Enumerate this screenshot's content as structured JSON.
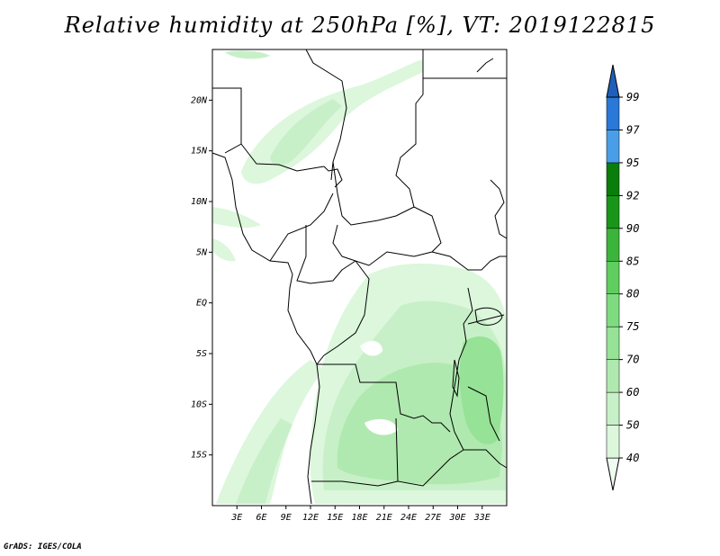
{
  "title": "Relative humidity at 250hPa [%], VT: 2019122815",
  "credit": "GrADS: IGES/COLA",
  "map": {
    "lon_range": [
      0,
      36
    ],
    "lat_range": [
      -20,
      25
    ],
    "lat_ticks": [
      {
        "value": 20,
        "label": "20N"
      },
      {
        "value": 15,
        "label": "15N"
      },
      {
        "value": 10,
        "label": "10N"
      },
      {
        "value": 5,
        "label": "5N"
      },
      {
        "value": 0,
        "label": "EQ"
      },
      {
        "value": -5,
        "label": "5S"
      },
      {
        "value": -10,
        "label": "10S"
      },
      {
        "value": -15,
        "label": "15S"
      }
    ],
    "lon_ticks": [
      {
        "value": 3,
        "label": "3E"
      },
      {
        "value": 6,
        "label": "6E"
      },
      {
        "value": 9,
        "label": "9E"
      },
      {
        "value": 12,
        "label": "12E"
      },
      {
        "value": 15,
        "label": "15E"
      },
      {
        "value": 18,
        "label": "18E"
      },
      {
        "value": 21,
        "label": "21E"
      },
      {
        "value": 24,
        "label": "24E"
      },
      {
        "value": 27,
        "label": "27E"
      },
      {
        "value": 30,
        "label": "30E"
      },
      {
        "value": 33,
        "label": "33E"
      }
    ]
  },
  "colorbar": {
    "levels": [
      "40",
      "50",
      "60",
      "70",
      "75",
      "80",
      "85",
      "90",
      "92",
      "95",
      "97",
      "99"
    ],
    "colors": [
      "#f0fcf0",
      "#dcf7dc",
      "#c8f0c8",
      "#afe9af",
      "#96e296",
      "#7fdb7f",
      "#5fce5f",
      "#3cb43c",
      "#199619",
      "#0a7d0a",
      "#4a9ee8",
      "#2a78d8",
      "#1f5fba"
    ]
  }
}
